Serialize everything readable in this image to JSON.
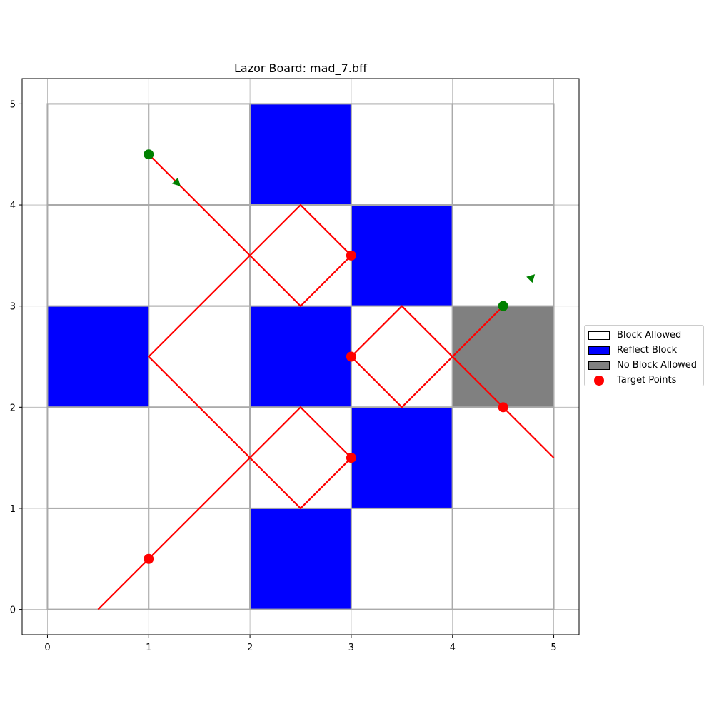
{
  "chart_data": {
    "type": "scatter",
    "title": "Lazor Board: mad_7.bff",
    "xlim": [
      -0.25,
      5.25
    ],
    "ylim": [
      -0.25,
      5.25
    ],
    "xticks": [
      "0",
      "1",
      "2",
      "3",
      "4",
      "5"
    ],
    "yticks": [
      "0",
      "1",
      "2",
      "3",
      "4",
      "5"
    ],
    "grid": true,
    "legend_position": "right-center",
    "colors": {
      "allowed": "#ffffff",
      "reflect": "#0000ff",
      "no_block": "#808080",
      "laser": "#ff0000",
      "target": "#ff0000",
      "source": "#008000",
      "cell_edge": "#aaaaaa"
    },
    "cells": [
      {
        "x": 0,
        "y": 4,
        "type": "allowed"
      },
      {
        "x": 1,
        "y": 4,
        "type": "allowed"
      },
      {
        "x": 2,
        "y": 4,
        "type": "reflect"
      },
      {
        "x": 3,
        "y": 4,
        "type": "allowed"
      },
      {
        "x": 4,
        "y": 4,
        "type": "allowed"
      },
      {
        "x": 0,
        "y": 3,
        "type": "allowed"
      },
      {
        "x": 1,
        "y": 3,
        "type": "allowed"
      },
      {
        "x": 2,
        "y": 3,
        "type": "allowed"
      },
      {
        "x": 3,
        "y": 3,
        "type": "reflect"
      },
      {
        "x": 4,
        "y": 3,
        "type": "allowed"
      },
      {
        "x": 0,
        "y": 2,
        "type": "reflect"
      },
      {
        "x": 1,
        "y": 2,
        "type": "allowed"
      },
      {
        "x": 2,
        "y": 2,
        "type": "reflect"
      },
      {
        "x": 3,
        "y": 2,
        "type": "allowed"
      },
      {
        "x": 4,
        "y": 2,
        "type": "no_block"
      },
      {
        "x": 0,
        "y": 1,
        "type": "allowed"
      },
      {
        "x": 1,
        "y": 1,
        "type": "allowed"
      },
      {
        "x": 2,
        "y": 1,
        "type": "allowed"
      },
      {
        "x": 3,
        "y": 1,
        "type": "reflect"
      },
      {
        "x": 4,
        "y": 1,
        "type": "allowed"
      },
      {
        "x": 0,
        "y": 0,
        "type": "allowed"
      },
      {
        "x": 1,
        "y": 0,
        "type": "allowed"
      },
      {
        "x": 2,
        "y": 0,
        "type": "reflect"
      },
      {
        "x": 3,
        "y": 0,
        "type": "allowed"
      },
      {
        "x": 4,
        "y": 0,
        "type": "allowed"
      }
    ],
    "laser_paths": [
      [
        [
          1,
          4.5
        ],
        [
          2.5,
          3
        ],
        [
          3,
          3.5
        ],
        [
          2.5,
          4
        ],
        [
          1,
          2.5
        ],
        [
          2.5,
          1
        ],
        [
          3,
          1.5
        ],
        [
          2.5,
          2
        ],
        [
          0.5,
          0
        ]
      ],
      [
        [
          4.5,
          3
        ],
        [
          3.5,
          2
        ],
        [
          3,
          2.5
        ],
        [
          3.5,
          3
        ],
        [
          5,
          1.5
        ]
      ]
    ],
    "sources": [
      {
        "x": 1,
        "y": 4.5,
        "dx": -1,
        "dy": 1
      },
      {
        "x": 4.5,
        "y": 3,
        "dx": -1,
        "dy": -1
      }
    ],
    "targets": [
      {
        "x": 3,
        "y": 3.5
      },
      {
        "x": 3,
        "y": 2.5
      },
      {
        "x": 4.5,
        "y": 2
      },
      {
        "x": 3,
        "y": 1.5
      },
      {
        "x": 1,
        "y": 0.5
      }
    ],
    "legend": [
      {
        "label": "Block Allowed",
        "kind": "allowed"
      },
      {
        "label": "Reflect Block",
        "kind": "reflect"
      },
      {
        "label": "No Block Allowed",
        "kind": "no_block"
      },
      {
        "label": "Target Points",
        "kind": "target"
      }
    ]
  }
}
